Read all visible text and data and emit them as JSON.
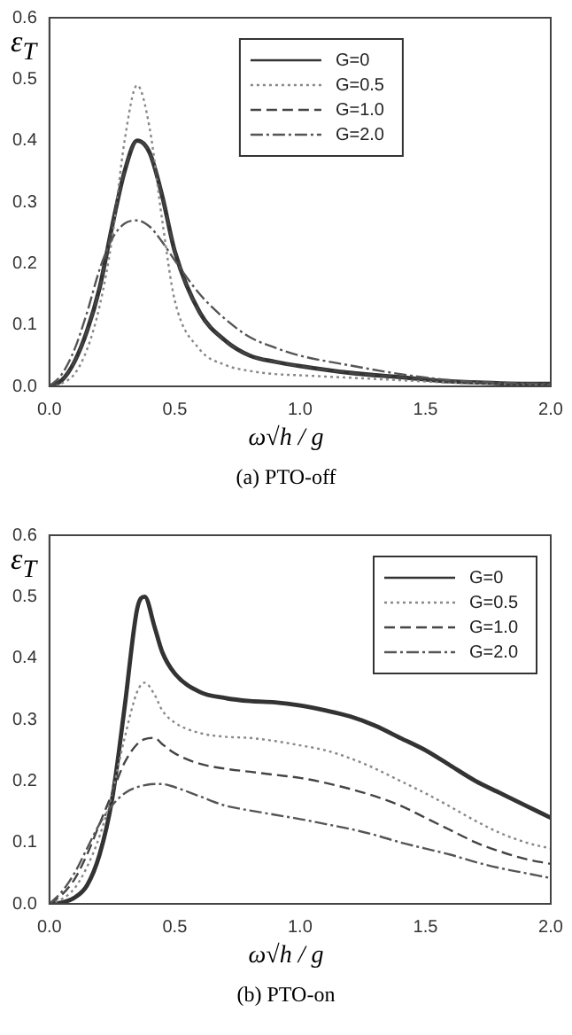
{
  "chart_data": [
    {
      "type": "line",
      "title": "(a) PTO-off",
      "xlabel": "ω√h / g",
      "ylabel": "ε$_{T}$",
      "legend": "top",
      "grid": false,
      "x": [
        0,
        0.05,
        0.1,
        0.15,
        0.2,
        0.25,
        0.3,
        0.35,
        0.4,
        0.45,
        0.5,
        0.6,
        0.7,
        0.8,
        0.9,
        1.0,
        1.2,
        1.4,
        1.6,
        1.8,
        2.0
      ],
      "series": [
        {
          "name": "G=0",
          "color": "#333333",
          "line_style": "solid",
          "values": [
            0,
            0.01,
            0.04,
            0.09,
            0.16,
            0.26,
            0.35,
            0.4,
            0.38,
            0.31,
            0.22,
            0.12,
            0.075,
            0.05,
            0.04,
            0.033,
            0.022,
            0.015,
            0.008,
            0.005,
            0.004
          ]
        },
        {
          "name": "G=0.5",
          "color": "#888888",
          "line_style": "dotted",
          "values": [
            0,
            0.005,
            0.02,
            0.06,
            0.13,
            0.24,
            0.4,
            0.49,
            0.42,
            0.27,
            0.14,
            0.06,
            0.035,
            0.025,
            0.02,
            0.018,
            0.014,
            0.01,
            0.006,
            0.004,
            0.003
          ]
        },
        {
          "name": "G=1.0",
          "color": "#444444",
          "line_style": "dashed",
          "values": [
            0,
            0.01,
            0.04,
            0.09,
            0.16,
            0.26,
            0.35,
            0.4,
            0.38,
            0.31,
            0.22,
            0.12,
            0.075,
            0.05,
            0.04,
            0.033,
            0.022,
            0.015,
            0.008,
            0.005,
            0.004
          ]
        },
        {
          "name": "G=2.0",
          "color": "#555555",
          "line_style": "dashdot",
          "values": [
            0,
            0.02,
            0.06,
            0.12,
            0.19,
            0.24,
            0.265,
            0.27,
            0.26,
            0.235,
            0.205,
            0.15,
            0.11,
            0.08,
            0.063,
            0.05,
            0.034,
            0.02,
            0.01,
            0.006,
            0.004
          ]
        }
      ],
      "xlim": [
        0,
        2
      ],
      "xticks": [
        {
          "value": 0,
          "label": "0.0"
        },
        {
          "value": 0.5,
          "label": "0.5"
        },
        {
          "value": 1,
          "label": "1.0"
        },
        {
          "value": 1.5,
          "label": "1.5"
        },
        {
          "value": 2,
          "label": "2.0"
        }
      ],
      "ylim": [
        0,
        0.6
      ],
      "yticks": [
        {
          "value": 0,
          "label": "0.0"
        },
        0.1,
        0.2,
        0.3,
        0.4,
        0.5,
        0.6
      ]
    },
    {
      "type": "line",
      "title": "(b) PTO-on",
      "xlabel": "ω√h / g",
      "ylabel": "ε$_{T}$",
      "legend": "top right",
      "grid": false,
      "x": [
        0,
        0.05,
        0.1,
        0.15,
        0.2,
        0.25,
        0.3,
        0.35,
        0.38,
        0.42,
        0.45,
        0.5,
        0.6,
        0.7,
        0.8,
        0.9,
        1.0,
        1.1,
        1.2,
        1.3,
        1.4,
        1.5,
        1.6,
        1.7,
        1.8,
        1.9,
        2.0
      ],
      "series": [
        {
          "name": "G=0",
          "color": "#333333",
          "line_style": "solid",
          "values": [
            0,
            0.002,
            0.01,
            0.03,
            0.08,
            0.17,
            0.32,
            0.48,
            0.5,
            0.45,
            0.41,
            0.375,
            0.345,
            0.335,
            0.33,
            0.328,
            0.323,
            0.315,
            0.305,
            0.29,
            0.27,
            0.25,
            0.225,
            0.2,
            0.18,
            0.16,
            0.14
          ]
        },
        {
          "name": "G=0.5",
          "color": "#888888",
          "line_style": "dotted",
          "values": [
            0,
            0.008,
            0.025,
            0.06,
            0.11,
            0.18,
            0.27,
            0.345,
            0.36,
            0.34,
            0.315,
            0.295,
            0.278,
            0.272,
            0.27,
            0.265,
            0.258,
            0.25,
            0.237,
            0.22,
            0.2,
            0.18,
            0.158,
            0.135,
            0.115,
            0.1,
            0.09
          ]
        },
        {
          "name": "G=1.0",
          "color": "#444444",
          "line_style": "dashed",
          "values": [
            0,
            0.015,
            0.04,
            0.08,
            0.13,
            0.18,
            0.23,
            0.26,
            0.268,
            0.27,
            0.26,
            0.245,
            0.228,
            0.22,
            0.215,
            0.21,
            0.205,
            0.197,
            0.187,
            0.175,
            0.16,
            0.14,
            0.12,
            0.1,
            0.085,
            0.073,
            0.065
          ]
        },
        {
          "name": "G=2.0",
          "color": "#555555",
          "line_style": "dashdot",
          "values": [
            0,
            0.02,
            0.05,
            0.09,
            0.13,
            0.16,
            0.18,
            0.19,
            0.193,
            0.195,
            0.195,
            0.19,
            0.175,
            0.16,
            0.152,
            0.145,
            0.138,
            0.13,
            0.122,
            0.112,
            0.1,
            0.09,
            0.08,
            0.068,
            0.058,
            0.05,
            0.042
          ]
        }
      ],
      "xlim": [
        0,
        2
      ],
      "xticks": [
        {
          "value": 0,
          "label": "0.0"
        },
        {
          "value": 0.5,
          "label": "0.5"
        },
        {
          "value": 1,
          "label": "1.0"
        },
        {
          "value": 1.5,
          "label": "1.5"
        },
        {
          "value": 2,
          "label": "2.0"
        }
      ],
      "ylim": [
        0,
        0.6
      ],
      "yticks": [
        {
          "value": 0,
          "label": "0.0"
        },
        0.1,
        0.2,
        0.3,
        0.4,
        0.5,
        0.6
      ]
    }
  ]
}
